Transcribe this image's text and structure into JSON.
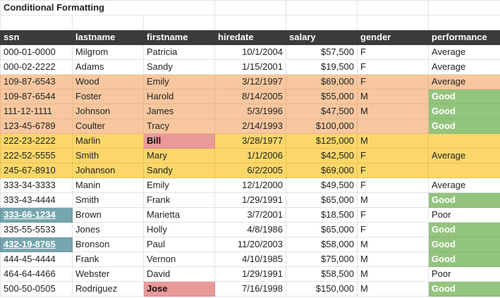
{
  "sheet": {
    "title": "Conditional Formatting",
    "columns": [
      "ssn",
      "lastname",
      "firstname",
      "hiredate",
      "salary",
      "gender",
      "performance"
    ],
    "rows": [
      {
        "ssn": "000-01-0000",
        "lastname": "Milgrom",
        "firstname": "Patricia",
        "hiredate": "10/1/2004",
        "salary": "$57,500",
        "gender": "F",
        "performance": "Average",
        "band": "none",
        "good": false,
        "name_flag": false,
        "ssn_flag": false
      },
      {
        "ssn": "000-02-2222",
        "lastname": "Adams",
        "firstname": "Sandy",
        "hiredate": "1/15/2001",
        "salary": "$19,500",
        "gender": "F",
        "performance": "Average",
        "band": "none",
        "good": false,
        "name_flag": false,
        "ssn_flag": false
      },
      {
        "ssn": "109-87-6543",
        "lastname": "Wood",
        "firstname": "Emily",
        "hiredate": "3/12/1997",
        "salary": "$69,000",
        "gender": "F",
        "performance": "Average",
        "band": "orange",
        "good": false,
        "name_flag": false,
        "ssn_flag": false
      },
      {
        "ssn": "109-87-6544",
        "lastname": "Foster",
        "firstname": "Harold",
        "hiredate": "8/14/2005",
        "salary": "$55,000",
        "gender": "M",
        "performance": "Good",
        "band": "orange",
        "good": true,
        "name_flag": false,
        "ssn_flag": false
      },
      {
        "ssn": "111-12-1111",
        "lastname": "Johnson",
        "firstname": "James",
        "hiredate": "5/3/1996",
        "salary": "$47,500",
        "gender": "M",
        "performance": "Good",
        "band": "orange",
        "good": true,
        "name_flag": false,
        "ssn_flag": false
      },
      {
        "ssn": "123-45-6789",
        "lastname": "Coulter",
        "firstname": "Tracy",
        "hiredate": "2/14/1993",
        "salary": "$100,000",
        "gender": "",
        "performance": "Good",
        "band": "orange",
        "good": true,
        "name_flag": false,
        "ssn_flag": false
      },
      {
        "ssn": "222-23-2222",
        "lastname": "Marlin",
        "firstname": "Bill",
        "hiredate": "3/28/1977",
        "salary": "$125,000",
        "gender": "M",
        "performance": "",
        "band": "yellow",
        "good": false,
        "name_flag": true,
        "ssn_flag": false
      },
      {
        "ssn": "222-52-5555",
        "lastname": "Smith",
        "firstname": "Mary",
        "hiredate": "1/1/2006",
        "salary": "$42,500",
        "gender": "F",
        "performance": "Average",
        "band": "yellow",
        "good": false,
        "name_flag": false,
        "ssn_flag": false
      },
      {
        "ssn": "245-67-8910",
        "lastname": "Johanson",
        "firstname": "Sandy",
        "hiredate": "6/2/2005",
        "salary": "$69,000",
        "gender": "F",
        "performance": "",
        "band": "yellow",
        "good": false,
        "name_flag": false,
        "ssn_flag": false
      },
      {
        "ssn": "333-34-3333",
        "lastname": "Manin",
        "firstname": "Emily",
        "hiredate": "12/1/2000",
        "salary": "$49,500",
        "gender": "F",
        "performance": "Average",
        "band": "none",
        "good": false,
        "name_flag": false,
        "ssn_flag": false
      },
      {
        "ssn": "333-43-4444",
        "lastname": "Smith",
        "firstname": "Frank",
        "hiredate": "1/29/1991",
        "salary": "$65,000",
        "gender": "M",
        "performance": "Good",
        "band": "none",
        "good": true,
        "name_flag": false,
        "ssn_flag": false
      },
      {
        "ssn": "333-66-1234",
        "lastname": "Brown",
        "firstname": "Marietta",
        "hiredate": "3/7/2001",
        "salary": "$18,500",
        "gender": "F",
        "performance": "Poor",
        "band": "none",
        "good": false,
        "name_flag": false,
        "ssn_flag": true
      },
      {
        "ssn": "335-55-5533",
        "lastname": "Jones",
        "firstname": "Holly",
        "hiredate": "4/8/1986",
        "salary": "$65,000",
        "gender": "F",
        "performance": "Good",
        "band": "none",
        "good": true,
        "name_flag": false,
        "ssn_flag": false
      },
      {
        "ssn": "432-19-8765",
        "lastname": "Bronson",
        "firstname": "Paul",
        "hiredate": "11/20/2003",
        "salary": "$58,000",
        "gender": "M",
        "performance": "Good",
        "band": "none",
        "good": true,
        "name_flag": false,
        "ssn_flag": true
      },
      {
        "ssn": "444-45-4444",
        "lastname": "Frank",
        "firstname": "Vernon",
        "hiredate": "4/10/1985",
        "salary": "$75,000",
        "gender": "M",
        "performance": "Good",
        "band": "none",
        "good": true,
        "name_flag": false,
        "ssn_flag": false
      },
      {
        "ssn": "464-64-4466",
        "lastname": "Webster",
        "firstname": "David",
        "hiredate": "1/29/1991",
        "salary": "$58,500",
        "gender": "M",
        "performance": "Poor",
        "band": "none",
        "good": false,
        "name_flag": false,
        "ssn_flag": false
      },
      {
        "ssn": "500-50-0505",
        "lastname": "Rodriguez",
        "firstname": "Jose",
        "hiredate": "7/16/1998",
        "salary": "$150,000",
        "gender": "M",
        "performance": "Good",
        "band": "none",
        "good": true,
        "name_flag": true,
        "ssn_flag": false
      }
    ]
  }
}
